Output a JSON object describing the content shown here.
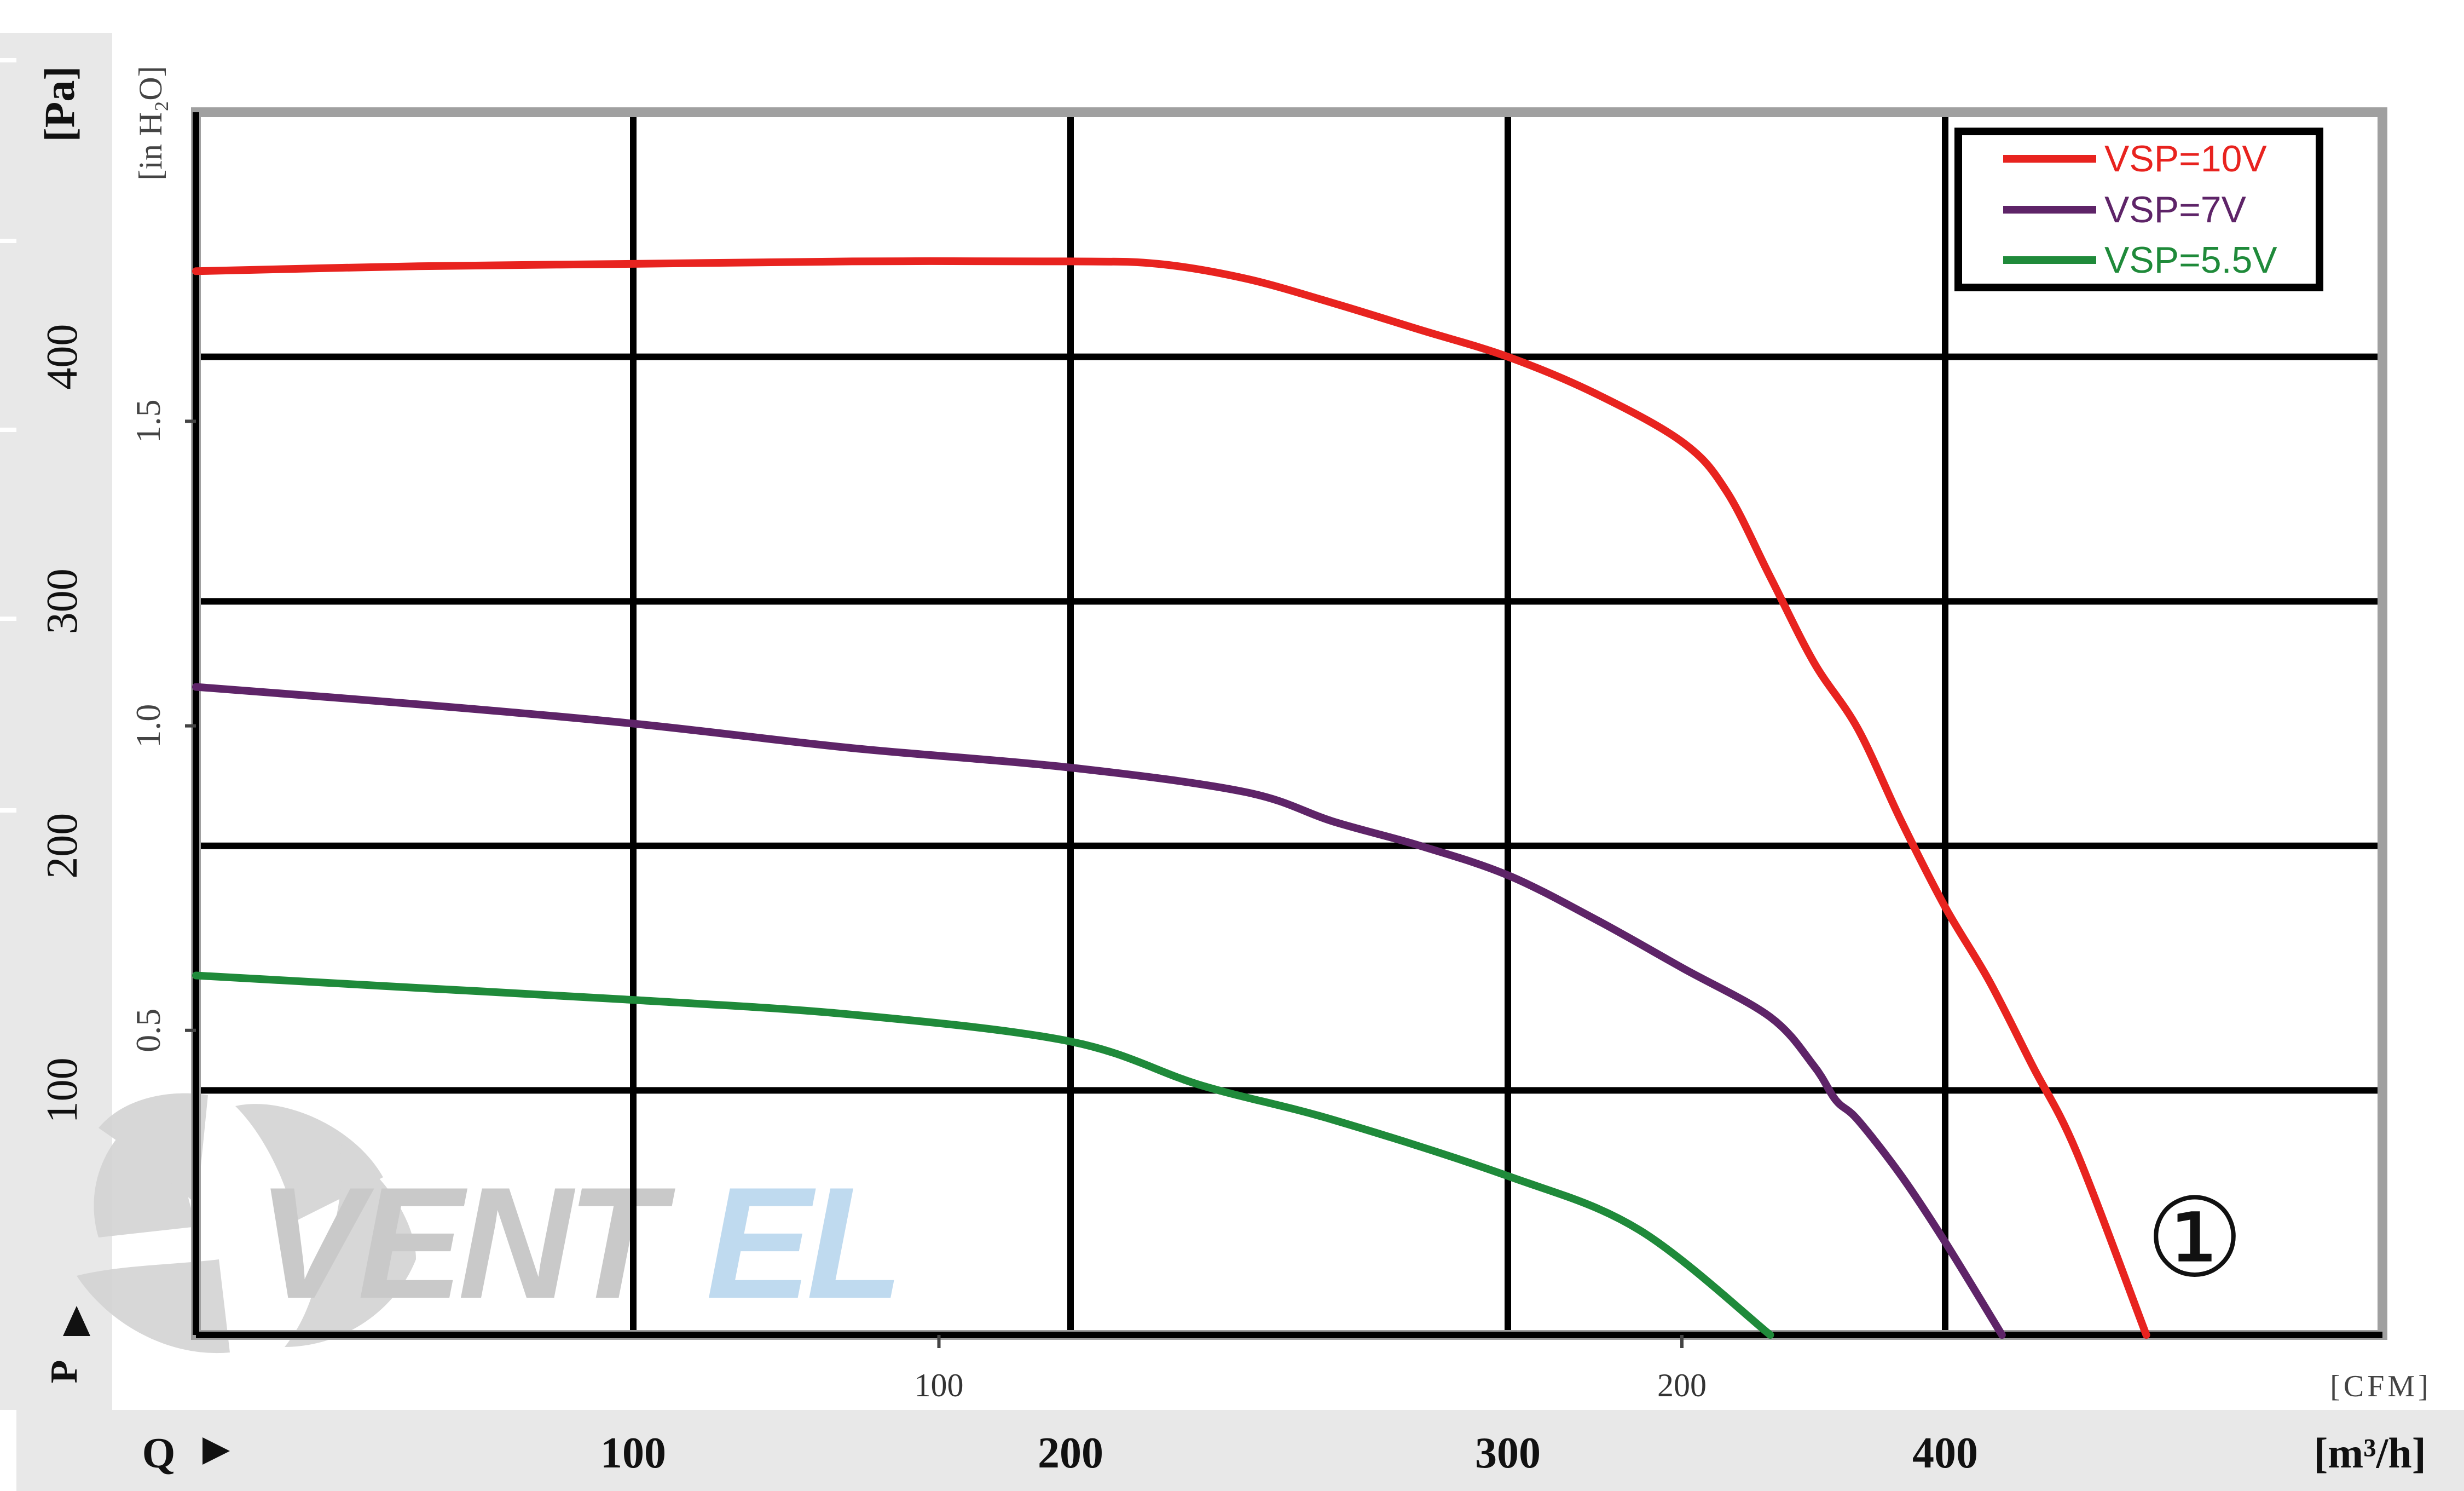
{
  "chart_data": {
    "type": "line",
    "title": "",
    "curve_marker": "①",
    "colors": {
      "red": "#e8231f",
      "purple": "#5e2468",
      "green": "#1f8a3a",
      "grid": "#000000",
      "band": "#e8e8e8",
      "watermark_gray": "#c8c8c8",
      "watermark_blue": "#b9d7ee"
    },
    "axes": {
      "pressure_pa": {
        "label": "[Pa]",
        "ticks": [
          "100",
          "200",
          "300",
          "400"
        ],
        "tick_values": [
          100,
          200,
          300,
          400
        ],
        "range": [
          0,
          500
        ]
      },
      "pressure_inh2o": {
        "label": "[in H₂O]",
        "ticks": [
          "0.5",
          "1.0",
          "1.5"
        ],
        "tick_values": [
          0.5,
          1.0,
          1.5
        ]
      },
      "flow_m3h": {
        "label": "[m³/h]",
        "ticks": [
          "100",
          "200",
          "300",
          "400"
        ],
        "tick_values": [
          100,
          200,
          300,
          400
        ],
        "range": [
          0,
          500
        ]
      },
      "flow_cfm": {
        "label": "[CFM]",
        "ticks": [
          "100",
          "200"
        ],
        "tick_values": [
          100,
          200
        ]
      },
      "p_symbol": "P",
      "q_symbol": "Q"
    },
    "legend": {
      "position": "top-right"
    },
    "series": [
      {
        "name": "VSP=10V",
        "color": "#e8231f",
        "x": [
          0,
          50,
          100,
          150,
          200,
          220,
          240,
          260,
          280,
          300,
          320,
          340,
          350,
          360,
          370,
          380,
          390,
          400,
          410,
          420,
          430,
          446
        ],
        "y": [
          435,
          437,
          438,
          439,
          439,
          438,
          432,
          422,
          411,
          400,
          385,
          365,
          345,
          310,
          275,
          248,
          210,
          175,
          145,
          110,
          75,
          0
        ]
      },
      {
        "name": "VSP=7V",
        "color": "#5e2468",
        "x": [
          0,
          50,
          100,
          150,
          200,
          240,
          260,
          280,
          300,
          320,
          340,
          360,
          370,
          375,
          380,
          390,
          400,
          413
        ],
        "y": [
          265,
          258,
          250,
          240,
          232,
          222,
          210,
          200,
          188,
          170,
          150,
          130,
          110,
          96,
          88,
          65,
          38,
          0
        ]
      },
      {
        "name": "VSP=5.5V",
        "color": "#1f8a3a",
        "x": [
          0,
          50,
          100,
          150,
          200,
          230,
          260,
          300,
          330,
          360
        ],
        "y": [
          147,
          142,
          137,
          131,
          120,
          102,
          88,
          65,
          43,
          0
        ]
      }
    ]
  }
}
